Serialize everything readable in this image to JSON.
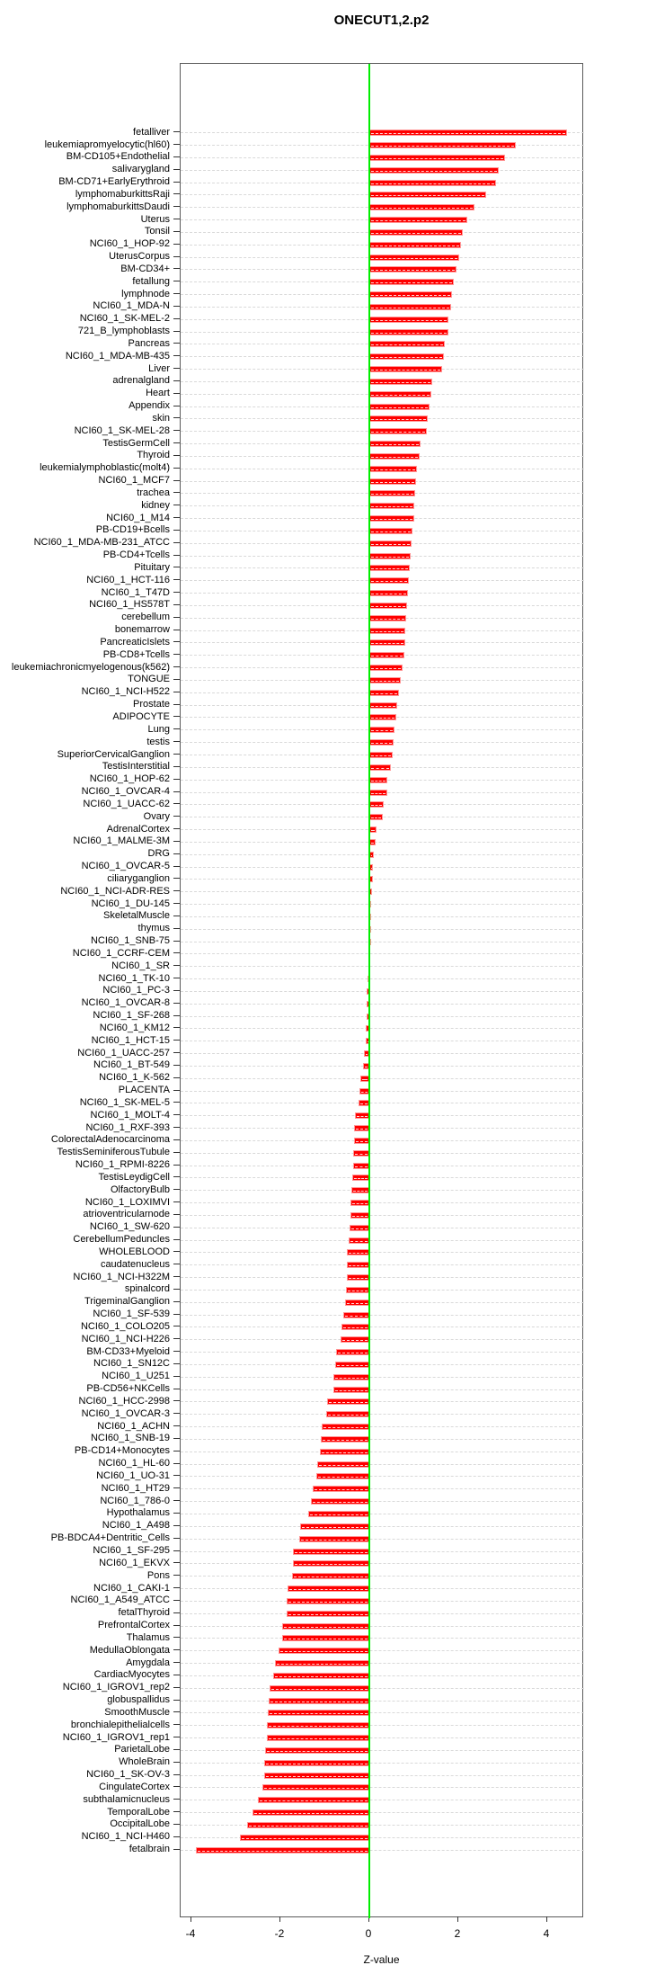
{
  "chart_data": {
    "type": "bar",
    "orientation": "horizontal",
    "title": "ONECUT1,2.p2",
    "xlabel": "Z-value",
    "ylabel": "",
    "xlim": [
      -4.24,
      4.83
    ],
    "x_ticks": [
      -4,
      -2,
      0,
      2,
      4
    ],
    "grid": "dashed horizontal per-row",
    "bar_color": "#ff0000",
    "bar_edge_color": "#ff9999",
    "zero_line_color": "#00ee00",
    "categories": [
      "fetalliver",
      "leukemiapromyelocytic(hl60)",
      "BM-CD105+Endothelial",
      "salivarygland",
      "BM-CD71+EarlyErythroid",
      "lymphomaburkittsRaji",
      "lymphomaburkittsDaudi",
      "Uterus",
      "Tonsil",
      "NCI60_1_HOP-92",
      "UterusCorpus",
      "BM-CD34+",
      "fetallung",
      "lymphnode",
      "NCI60_1_MDA-N",
      "NCI60_1_SK-MEL-2",
      "721_B_lymphoblasts",
      "Pancreas",
      "NCI60_1_MDA-MB-435",
      "Liver",
      "adrenalgland",
      "Heart",
      "Appendix",
      "skin",
      "NCI60_1_SK-MEL-28",
      "TestisGermCell",
      "Thyroid",
      "leukemialymphoblastic(molt4)",
      "NCI60_1_MCF7",
      "trachea",
      "kidney",
      "NCI60_1_M14",
      "PB-CD19+Bcells",
      "NCI60_1_MDA-MB-231_ATCC",
      "PB-CD4+Tcells",
      "Pituitary",
      "NCI60_1_HCT-116",
      "NCI60_1_T47D",
      "NCI60_1_HS578T",
      "cerebellum",
      "bonemarrow",
      "PancreaticIslets",
      "PB-CD8+Tcells",
      "leukemiachronicmyelogenous(k562)",
      "TONGUE",
      "NCI60_1_NCI-H522",
      "Prostate",
      "ADIPOCYTE",
      "Lung",
      "testis",
      "SuperiorCervicalGanglion",
      "TestisInterstitial",
      "NCI60_1_HOP-62",
      "NCI60_1_OVCAR-4",
      "NCI60_1_UACC-62",
      "Ovary",
      "AdrenalCortex",
      "NCI60_1_MALME-3M",
      "DRG",
      "NCI60_1_OVCAR-5",
      "ciliaryganglion",
      "NCI60_1_NCI-ADR-RES",
      "NCI60_1_DU-145",
      "SkeletalMuscle",
      "thymus",
      "NCI60_1_SNB-75",
      "NCI60_1_CCRF-CEM",
      "NCI60_1_SR",
      "NCI60_1_TK-10",
      "NCI60_1_PC-3",
      "NCI60_1_OVCAR-8",
      "NCI60_1_SF-268",
      "NCI60_1_KM12",
      "NCI60_1_HCT-15",
      "NCI60_1_UACC-257",
      "NCI60_1_BT-549",
      "NCI60_1_K-562",
      "PLACENTA",
      "NCI60_1_SK-MEL-5",
      "NCI60_1_MOLT-4",
      "NCI60_1_RXF-393",
      "ColorectalAdenocarcinoma",
      "TestisSeminiferousTubule",
      "NCI60_1_RPMI-8226",
      "TestisLeydigCell",
      "OlfactoryBulb",
      "NCI60_1_LOXIMVI",
      "atrioventricularnode",
      "NCI60_1_SW-620",
      "CerebellumPeduncles",
      "WHOLEBLOOD",
      "caudatenucleus",
      "NCI60_1_NCI-H322M",
      "spinalcord",
      "TrigeminalGanglion",
      "NCI60_1_SF-539",
      "NCI60_1_COLO205",
      "NCI60_1_NCI-H226",
      "BM-CD33+Myeloid",
      "NCI60_1_SN12C",
      "NCI60_1_U251",
      "PB-CD56+NKCells",
      "NCI60_1_HCC-2998",
      "NCI60_1_OVCAR-3",
      "NCI60_1_ACHN",
      "NCI60_1_SNB-19",
      "PB-CD14+Monocytes",
      "NCI60_1_HL-60",
      "NCI60_1_UO-31",
      "NCI60_1_HT29",
      "NCI60_1_786-0",
      "Hypothalamus",
      "NCI60_1_A498",
      "PB-BDCA4+Dentritic_Cells",
      "NCI60_1_SF-295",
      "NCI60_1_EKVX",
      "Pons",
      "NCI60_1_CAKI-1",
      "NCI60_1_A549_ATCC",
      "fetalThyroid",
      "PrefrontalCortex",
      "Thalamus",
      "MedullaOblongata",
      "Amygdala",
      "CardiacMyocytes",
      "NCI60_1_IGROV1_rep2",
      "globuspallidus",
      "SmoothMuscle",
      "bronchialepithelialcells",
      "NCI60_1_IGROV1_rep1",
      "ParietalLobe",
      "WholeBrain",
      "NCI60_1_SK-OV-3",
      "CingulateCortex",
      "subthalamicnucleus",
      "TemporalLobe",
      "OccipitalLobe",
      "NCI60_1_NCI-H460",
      "fetalbrain"
    ],
    "values": [
      4.45,
      3.3,
      3.05,
      2.9,
      2.85,
      2.62,
      2.37,
      2.2,
      2.1,
      2.06,
      2.03,
      1.96,
      1.9,
      1.86,
      1.84,
      1.78,
      1.77,
      1.69,
      1.67,
      1.63,
      1.42,
      1.4,
      1.35,
      1.31,
      1.29,
      1.15,
      1.13,
      1.07,
      1.05,
      1.03,
      1.02,
      1.01,
      0.96,
      0.94,
      0.92,
      0.9,
      0.89,
      0.86,
      0.84,
      0.83,
      0.81,
      0.8,
      0.78,
      0.75,
      0.71,
      0.67,
      0.63,
      0.61,
      0.56,
      0.54,
      0.52,
      0.48,
      0.41,
      0.4,
      0.33,
      0.31,
      0.16,
      0.15,
      0.1,
      0.09,
      0.08,
      0.07,
      0.05,
      0.02,
      0.01,
      -0.01,
      -0.02,
      -0.02,
      -0.05,
      -0.06,
      -0.06,
      -0.07,
      -0.08,
      -0.09,
      -0.13,
      -0.15,
      -0.21,
      -0.23,
      -0.25,
      -0.32,
      -0.34,
      -0.34,
      -0.36,
      -0.36,
      -0.39,
      -0.4,
      -0.42,
      -0.42,
      -0.44,
      -0.47,
      -0.5,
      -0.5,
      -0.51,
      -0.52,
      -0.54,
      -0.58,
      -0.62,
      -0.64,
      -0.75,
      -0.77,
      -0.8,
      -0.8,
      -0.94,
      -0.97,
      -1.07,
      -1.1,
      -1.11,
      -1.17,
      -1.19,
      -1.27,
      -1.31,
      -1.38,
      -1.56,
      -1.58,
      -1.72,
      -1.72,
      -1.74,
      -1.83,
      -1.86,
      -1.86,
      -1.95,
      -1.96,
      -2.04,
      -2.12,
      -2.16,
      -2.24,
      -2.26,
      -2.28,
      -2.3,
      -2.3,
      -2.34,
      -2.36,
      -2.37,
      -2.41,
      -2.51,
      -2.63,
      -2.75,
      -2.9,
      -3.89
    ]
  }
}
